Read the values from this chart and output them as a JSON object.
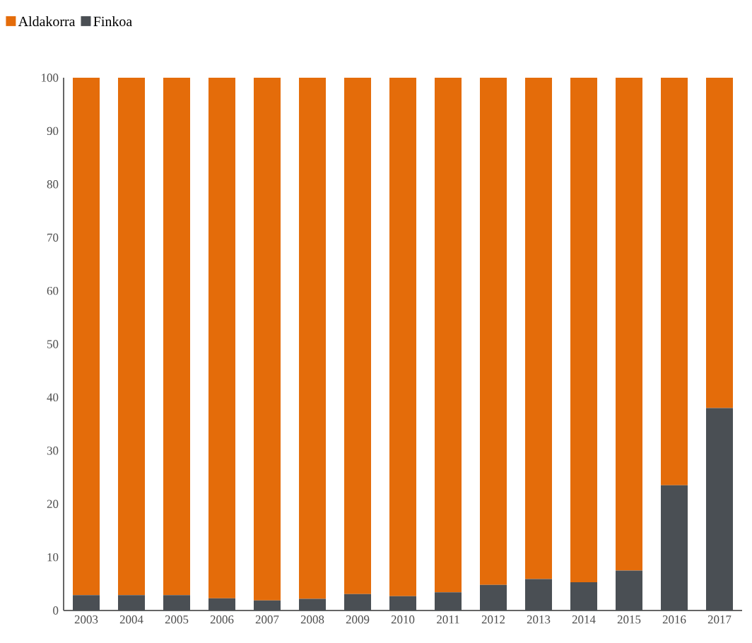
{
  "chart_data": {
    "type": "bar",
    "stacked": true,
    "categories": [
      "2003",
      "2004",
      "2005",
      "2006",
      "2007",
      "2008",
      "2009",
      "2010",
      "2011",
      "2012",
      "2013",
      "2014",
      "2015",
      "2016",
      "2017"
    ],
    "series": [
      {
        "name": "Finkoa",
        "color": "#4a4f54",
        "values": [
          2.9,
          2.9,
          2.9,
          2.3,
          1.9,
          2.2,
          3.1,
          2.7,
          3.4,
          4.8,
          5.9,
          5.3,
          7.5,
          23.5,
          38
        ]
      },
      {
        "name": "Aldakorra",
        "color": "#e46c0a",
        "values": [
          97.1,
          97.1,
          97.1,
          97.7,
          98.1,
          97.8,
          96.9,
          97.3,
          96.6,
          95.2,
          94.1,
          94.7,
          92.5,
          76.5,
          62
        ]
      }
    ],
    "ylim": [
      0,
      100
    ],
    "yticks": [
      0,
      10,
      20,
      30,
      40,
      50,
      60,
      70,
      80,
      90,
      100
    ],
    "grid": false,
    "legend": "top left"
  }
}
